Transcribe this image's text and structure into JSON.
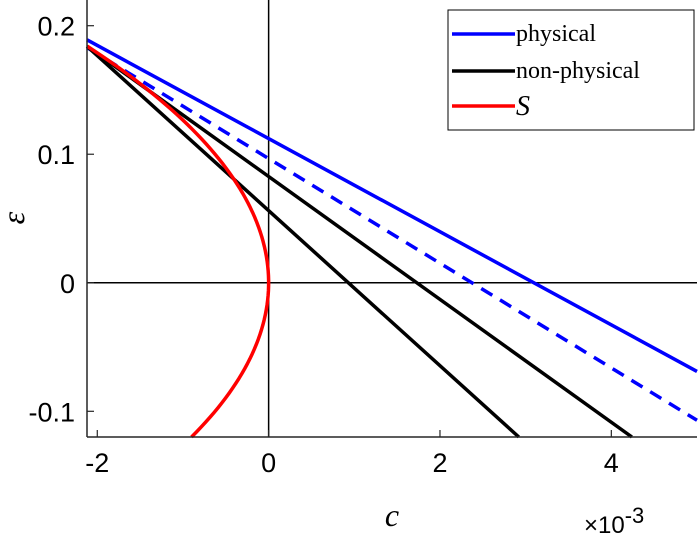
{
  "chart_data": {
    "type": "line",
    "xlabel": "c",
    "ylabel": "ε",
    "x_multiplier": "×10",
    "x_multiplier_exp": "-3",
    "xlim": [
      -0.00212,
      0.005
    ],
    "ylim": [
      -0.12,
      0.22
    ],
    "x_ticks": [
      -0.002,
      0,
      0.002,
      0.004
    ],
    "x_tick_labels": [
      "-2",
      "0",
      "2",
      "4"
    ],
    "y_ticks": [
      -0.1,
      0,
      0.1,
      0.2
    ],
    "y_tick_labels": [
      "-0.1",
      "0",
      "0.1",
      "0.2"
    ],
    "grid": false,
    "legend": {
      "position": "top-right",
      "entries": [
        {
          "label": "physical",
          "color": "#0000ff",
          "style": "solid"
        },
        {
          "label": "non-physical",
          "color": "#000000",
          "style": "solid"
        },
        {
          "label": "S",
          "color": "#ff0000",
          "style": "solid"
        }
      ]
    },
    "reference_lines": [
      {
        "axis": "x",
        "value": 0,
        "color": "#000000"
      },
      {
        "axis": "y",
        "value": 0,
        "color": "#000000"
      }
    ],
    "series": [
      {
        "group": "physical",
        "color": "#0000ff",
        "dash": "solid",
        "x": [
          -0.00212,
          0.005
        ],
        "y": [
          0.189,
          -0.069
        ]
      },
      {
        "group": "physical",
        "color": "#0000ff",
        "dash": "dashed",
        "x": [
          -0.00212,
          0.005
        ],
        "y": [
          0.183,
          -0.107
        ]
      },
      {
        "group": "non-physical",
        "color": "#000000",
        "dash": "solid",
        "x": [
          -0.00212,
          0.00424
        ],
        "y": [
          0.184,
          -0.12
        ]
      },
      {
        "group": "non-physical",
        "color": "#000000",
        "dash": "solid",
        "x": [
          -0.00212,
          0.00292
        ],
        "y": [
          0.184,
          -0.12
        ]
      },
      {
        "group": "S",
        "color": "#ff0000",
        "dash": "solid",
        "curve": "parabola c = -a*eps^2",
        "a": 0.0625,
        "eps_range": [
          -0.12,
          0.184
        ]
      }
    ]
  }
}
